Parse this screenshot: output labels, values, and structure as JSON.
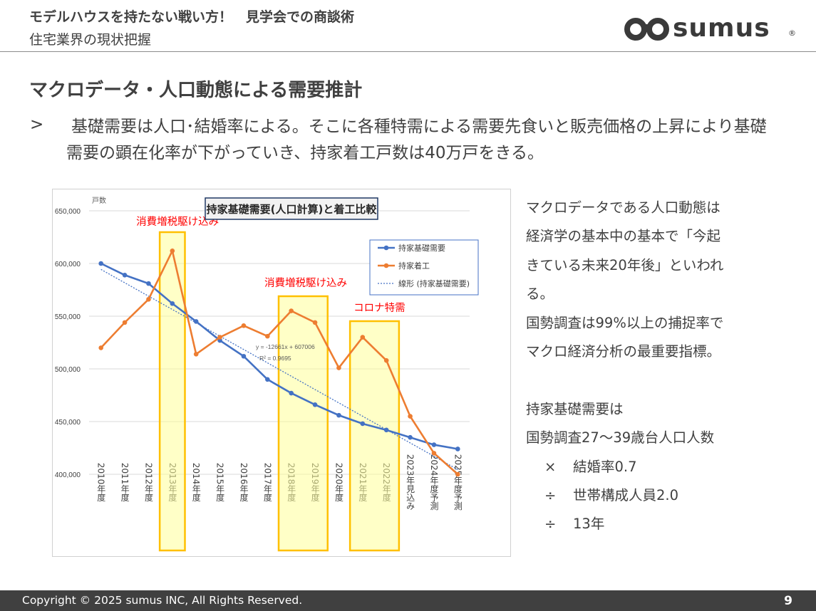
{
  "header": {
    "title": "モデルハウスを持たない戦い方！　見学会での商談術",
    "subtitle": "住宅業界の現状把握",
    "logo_text": "sumus",
    "logo_mark": "®"
  },
  "section_title": "マクロデータ・人口動態による需要推計",
  "bullet_marker": ">",
  "lead_text": "基礎需要は人口･結婚率による。そこに各種特需による需要先食いと販売価格の上昇により基礎需要の顕在化率が下がっていき、持家着工戸数は40万戸をきる。",
  "side_text": {
    "lines": [
      "マクロデータである人口動態は",
      "経済学の基本中の基本で「今起",
      "きている未来20年後」といわれ",
      "る。",
      "国勢調査は99%以上の捕捉率で",
      "マクロ経済分析の最重要指標。",
      "",
      "持家基礎需要は",
      "国勢調査27～39歳台人口人数"
    ],
    "formula": [
      {
        "op": "×",
        "text": "結婚率0.7"
      },
      {
        "op": "÷",
        "text": "世帯構成人員2.0"
      },
      {
        "op": "÷",
        "text": "13年"
      }
    ]
  },
  "footer": {
    "copyright": "Copyright © 2025 sumus INC, All Rights Reserved.",
    "page": "9"
  },
  "chart_data": {
    "type": "line",
    "title": "持家基礎需要(人口計算)と着工比較",
    "ylabel": "戸数",
    "ylim": [
      400000,
      650000
    ],
    "yticks": [
      400000,
      450000,
      500000,
      550000,
      600000,
      650000
    ],
    "ytick_labels": [
      "400,000",
      "450,000",
      "500,000",
      "550,000",
      "600,000",
      "650,000"
    ],
    "categories": [
      "2010年度",
      "2011年度",
      "2012年度",
      "2013年度",
      "2014年度",
      "2015年度",
      "2016年度",
      "2017年度",
      "2018年度",
      "2019年度",
      "2020年度",
      "2021年度",
      "2022年度",
      "2023年見込み",
      "2024年度予測",
      "2025年度予測"
    ],
    "series": [
      {
        "name": "持家基礎需要",
        "color": "#4472c4",
        "values": [
          600000,
          589000,
          581000,
          562000,
          545000,
          527000,
          512000,
          490000,
          477000,
          466000,
          456000,
          448000,
          442000,
          435000,
          428000,
          424000
        ]
      },
      {
        "name": "持家着工",
        "color": "#ed7d31",
        "values": [
          520000,
          544000,
          566000,
          612000,
          514000,
          530000,
          541000,
          531000,
          555000,
          544000,
          501000,
          530000,
          508000,
          455000,
          420000,
          400000
        ]
      }
    ],
    "trendline": {
      "name": "線形 (持家基礎需要)",
      "color": "#4472c4",
      "equation": "y = -12661x + 607006",
      "r2": "R² = 0.9695",
      "slope": -12661,
      "intercept": 607006
    },
    "highlights": [
      {
        "label": "消費増税駆け込み",
        "categories": [
          "2013年度"
        ]
      },
      {
        "label": "消費増税駆け込み",
        "categories": [
          "2018年度",
          "2019年度"
        ]
      },
      {
        "label": "コロナ特需",
        "categories": [
          "2021年度",
          "2022年度"
        ]
      }
    ],
    "highlight_color": "#ffc000",
    "highlight_label_color": "#ff0000",
    "legend_position": "top-right",
    "grid": true
  }
}
